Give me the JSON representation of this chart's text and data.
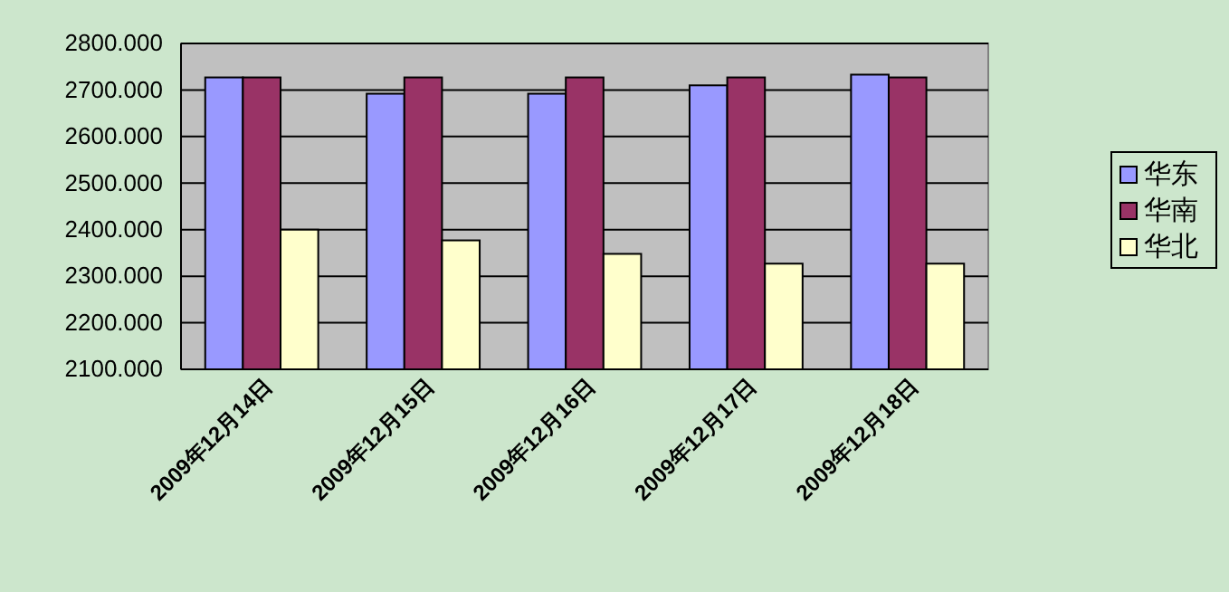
{
  "chart_data": {
    "type": "bar",
    "categories": [
      "2009年12月14日",
      "2009年12月15日",
      "2009年12月16日",
      "2009年12月17日",
      "2009年12月18日"
    ],
    "series": [
      {
        "name": "华东",
        "color": "#9999ff",
        "values": [
          2727,
          2692,
          2692,
          2710,
          2733
        ]
      },
      {
        "name": "华南",
        "color": "#993366",
        "values": [
          2727,
          2727,
          2727,
          2727,
          2727
        ]
      },
      {
        "name": "华北",
        "color": "#ffffcc",
        "values": [
          2400,
          2377,
          2348,
          2327,
          2327
        ]
      }
    ],
    "ylim": [
      2100,
      2800
    ],
    "yticks": [
      {
        "value": 2100,
        "label": "2100.000"
      },
      {
        "value": 2200,
        "label": "2200.000"
      },
      {
        "value": 2300,
        "label": "2300.000"
      },
      {
        "value": 2400,
        "label": "2400.000"
      },
      {
        "value": 2500,
        "label": "2500.000"
      },
      {
        "value": 2600,
        "label": "2600.000"
      },
      {
        "value": 2700,
        "label": "2700.000"
      },
      {
        "value": 2800,
        "label": "2800.000"
      }
    ],
    "grid": "y",
    "legend": "right"
  }
}
